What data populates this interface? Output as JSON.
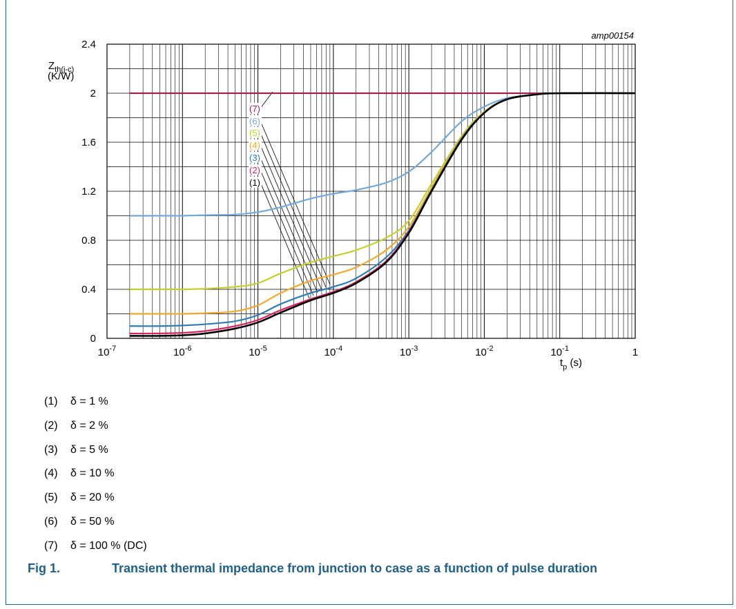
{
  "chart_data": {
    "type": "line",
    "ref_id": "amp00154",
    "ylabel": {
      "main": "Z",
      "sub": "th(j-c)",
      "unit": "(K/W)"
    },
    "xlabel": {
      "main": "t",
      "sub": "p",
      "unit": " (s)"
    },
    "xscale": "log",
    "xlim": [
      1e-07,
      1
    ],
    "ylim": [
      0,
      2.4
    ],
    "grid": true,
    "x_ticks": [
      {
        "base": "10",
        "exp": "-7"
      },
      {
        "base": "10",
        "exp": "-6"
      },
      {
        "base": "10",
        "exp": "-5"
      },
      {
        "base": "10",
        "exp": "-4"
      },
      {
        "base": "10",
        "exp": "-3"
      },
      {
        "base": "10",
        "exp": "-2"
      },
      {
        "base": "10",
        "exp": "-1"
      },
      {
        "base": "1",
        "exp": ""
      }
    ],
    "y_ticks": [
      "0",
      "0.4",
      "0.8",
      "1.2",
      "1.6",
      "2",
      "2.4"
    ],
    "x": [
      2e-07,
      5e-07,
      1e-06,
      2e-06,
      5e-06,
      1e-05,
      2e-05,
      5e-05,
      0.0001,
      0.0002,
      0.0005,
      0.001,
      0.002,
      0.005,
      0.01,
      0.02,
      0.05,
      0.1,
      1
    ],
    "series": [
      {
        "label": "(1)",
        "color": "#000000",
        "values": [
          0.02,
          0.02,
          0.025,
          0.04,
          0.08,
          0.13,
          0.21,
          0.31,
          0.37,
          0.45,
          0.62,
          0.86,
          1.2,
          1.62,
          1.84,
          1.95,
          1.99,
          2.0,
          2.0
        ]
      },
      {
        "label": "(2)",
        "color": "#d6245e",
        "values": [
          0.04,
          0.04,
          0.045,
          0.06,
          0.1,
          0.15,
          0.23,
          0.32,
          0.38,
          0.46,
          0.63,
          0.87,
          1.2,
          1.62,
          1.84,
          1.95,
          1.99,
          2.0,
          2.0
        ]
      },
      {
        "label": "(3)",
        "color": "#2f7cb5",
        "values": [
          0.1,
          0.1,
          0.105,
          0.115,
          0.14,
          0.19,
          0.28,
          0.37,
          0.42,
          0.49,
          0.66,
          0.88,
          1.21,
          1.63,
          1.84,
          1.95,
          1.99,
          2.0,
          2.0
        ]
      },
      {
        "label": "(4)",
        "color": "#f0a830",
        "values": [
          0.2,
          0.2,
          0.2,
          0.205,
          0.22,
          0.27,
          0.37,
          0.47,
          0.52,
          0.58,
          0.72,
          0.91,
          1.23,
          1.64,
          1.84,
          1.95,
          1.99,
          2.0,
          2.0
        ]
      },
      {
        "label": "(5)",
        "color": "#c5cf2c",
        "values": [
          0.4,
          0.4,
          0.4,
          0.405,
          0.42,
          0.45,
          0.53,
          0.62,
          0.67,
          0.72,
          0.82,
          0.96,
          1.26,
          1.65,
          1.85,
          1.95,
          1.99,
          2.0,
          2.0
        ]
      },
      {
        "label": "(6)",
        "color": "#74a8d8",
        "values": [
          1.0,
          1.0,
          1.0,
          1.005,
          1.01,
          1.03,
          1.07,
          1.14,
          1.18,
          1.21,
          1.27,
          1.36,
          1.52,
          1.77,
          1.89,
          1.96,
          1.99,
          2.0,
          2.0
        ]
      },
      {
        "label": "(7)",
        "color": "#a31f4f",
        "values": [
          2.0,
          2.0,
          2.0,
          2.0,
          2.0,
          2.0,
          2.0,
          2.0,
          2.0,
          2.0,
          2.0,
          2.0,
          2.0,
          2.0,
          2.0,
          2.0,
          2.0,
          2.0,
          2.0
        ]
      }
    ]
  },
  "legend": [
    {
      "num": "(1)",
      "text": "δ = 1 %"
    },
    {
      "num": "(2)",
      "text": "δ = 2 %"
    },
    {
      "num": "(3)",
      "text": "δ = 5 %"
    },
    {
      "num": "(4)",
      "text": "δ = 10 %"
    },
    {
      "num": "(5)",
      "text": "δ = 20 %"
    },
    {
      "num": "(6)",
      "text": "δ = 50 %"
    },
    {
      "num": "(7)",
      "text": "δ = 100 % (DC)"
    }
  ],
  "caption": {
    "fig": "Fig 1.",
    "text": "Transient thermal impedance from junction to case as a function of pulse duration",
    "color": "#1f5f8b"
  }
}
